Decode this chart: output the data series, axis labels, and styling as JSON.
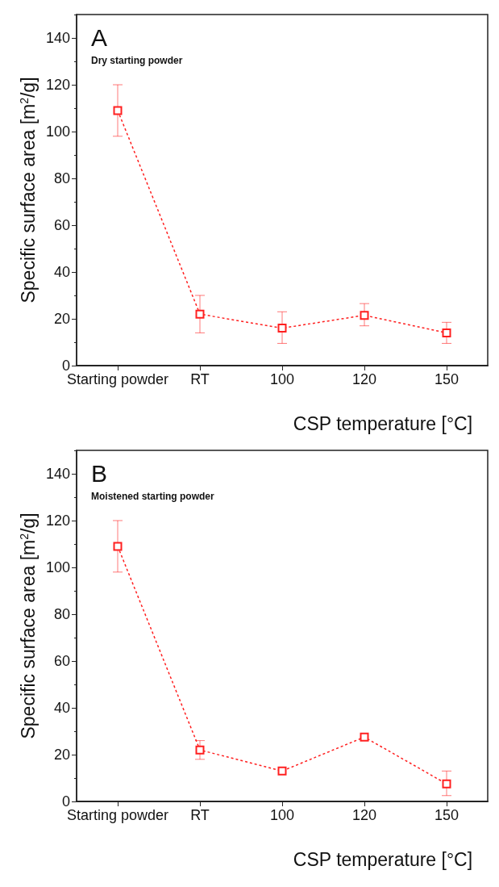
{
  "chart_data": [
    {
      "type": "line",
      "title": "A",
      "subtitle": "Dry starting powder",
      "xlabel": "CSP temperature [°C]",
      "ylabel": "Specific surface area [m$^{2}$/g]",
      "categories": [
        "Starting powder",
        "RT",
        "100",
        "120",
        "150"
      ],
      "series": [
        {
          "color": "#ff2020",
          "values": [
            109,
            22,
            16,
            21.5,
            14
          ],
          "errors": [
            [
              98,
              120
            ],
            [
              14,
              30
            ],
            [
              9.5,
              23
            ],
            [
              17,
              26.5
            ],
            [
              9.5,
              18.5
            ]
          ]
        }
      ],
      "ylim": [
        0,
        150
      ],
      "yticks": [
        0,
        20,
        40,
        60,
        80,
        100,
        120,
        140
      ],
      "grid": false,
      "marker": "square",
      "line_style": "dotted"
    },
    {
      "type": "line",
      "title": "B",
      "subtitle": "Moistened starting powder",
      "xlabel": "CSP temperature [°C]",
      "ylabel": "Specific surface area [m$^{2}$/g]",
      "categories": [
        "Starting powder",
        "RT",
        "100",
        "120",
        "150"
      ],
      "series": [
        {
          "color": "#ff2020",
          "values": [
            109,
            22,
            13,
            27.5,
            7.5
          ],
          "errors": [
            [
              98,
              120
            ],
            [
              18,
              26
            ],
            null,
            null,
            [
              2.5,
              13
            ]
          ]
        }
      ],
      "ylim": [
        0,
        150
      ],
      "yticks": [
        0,
        20,
        40,
        60,
        80,
        100,
        120,
        140
      ],
      "grid": false,
      "marker": "square",
      "line_style": "dotted"
    }
  ]
}
